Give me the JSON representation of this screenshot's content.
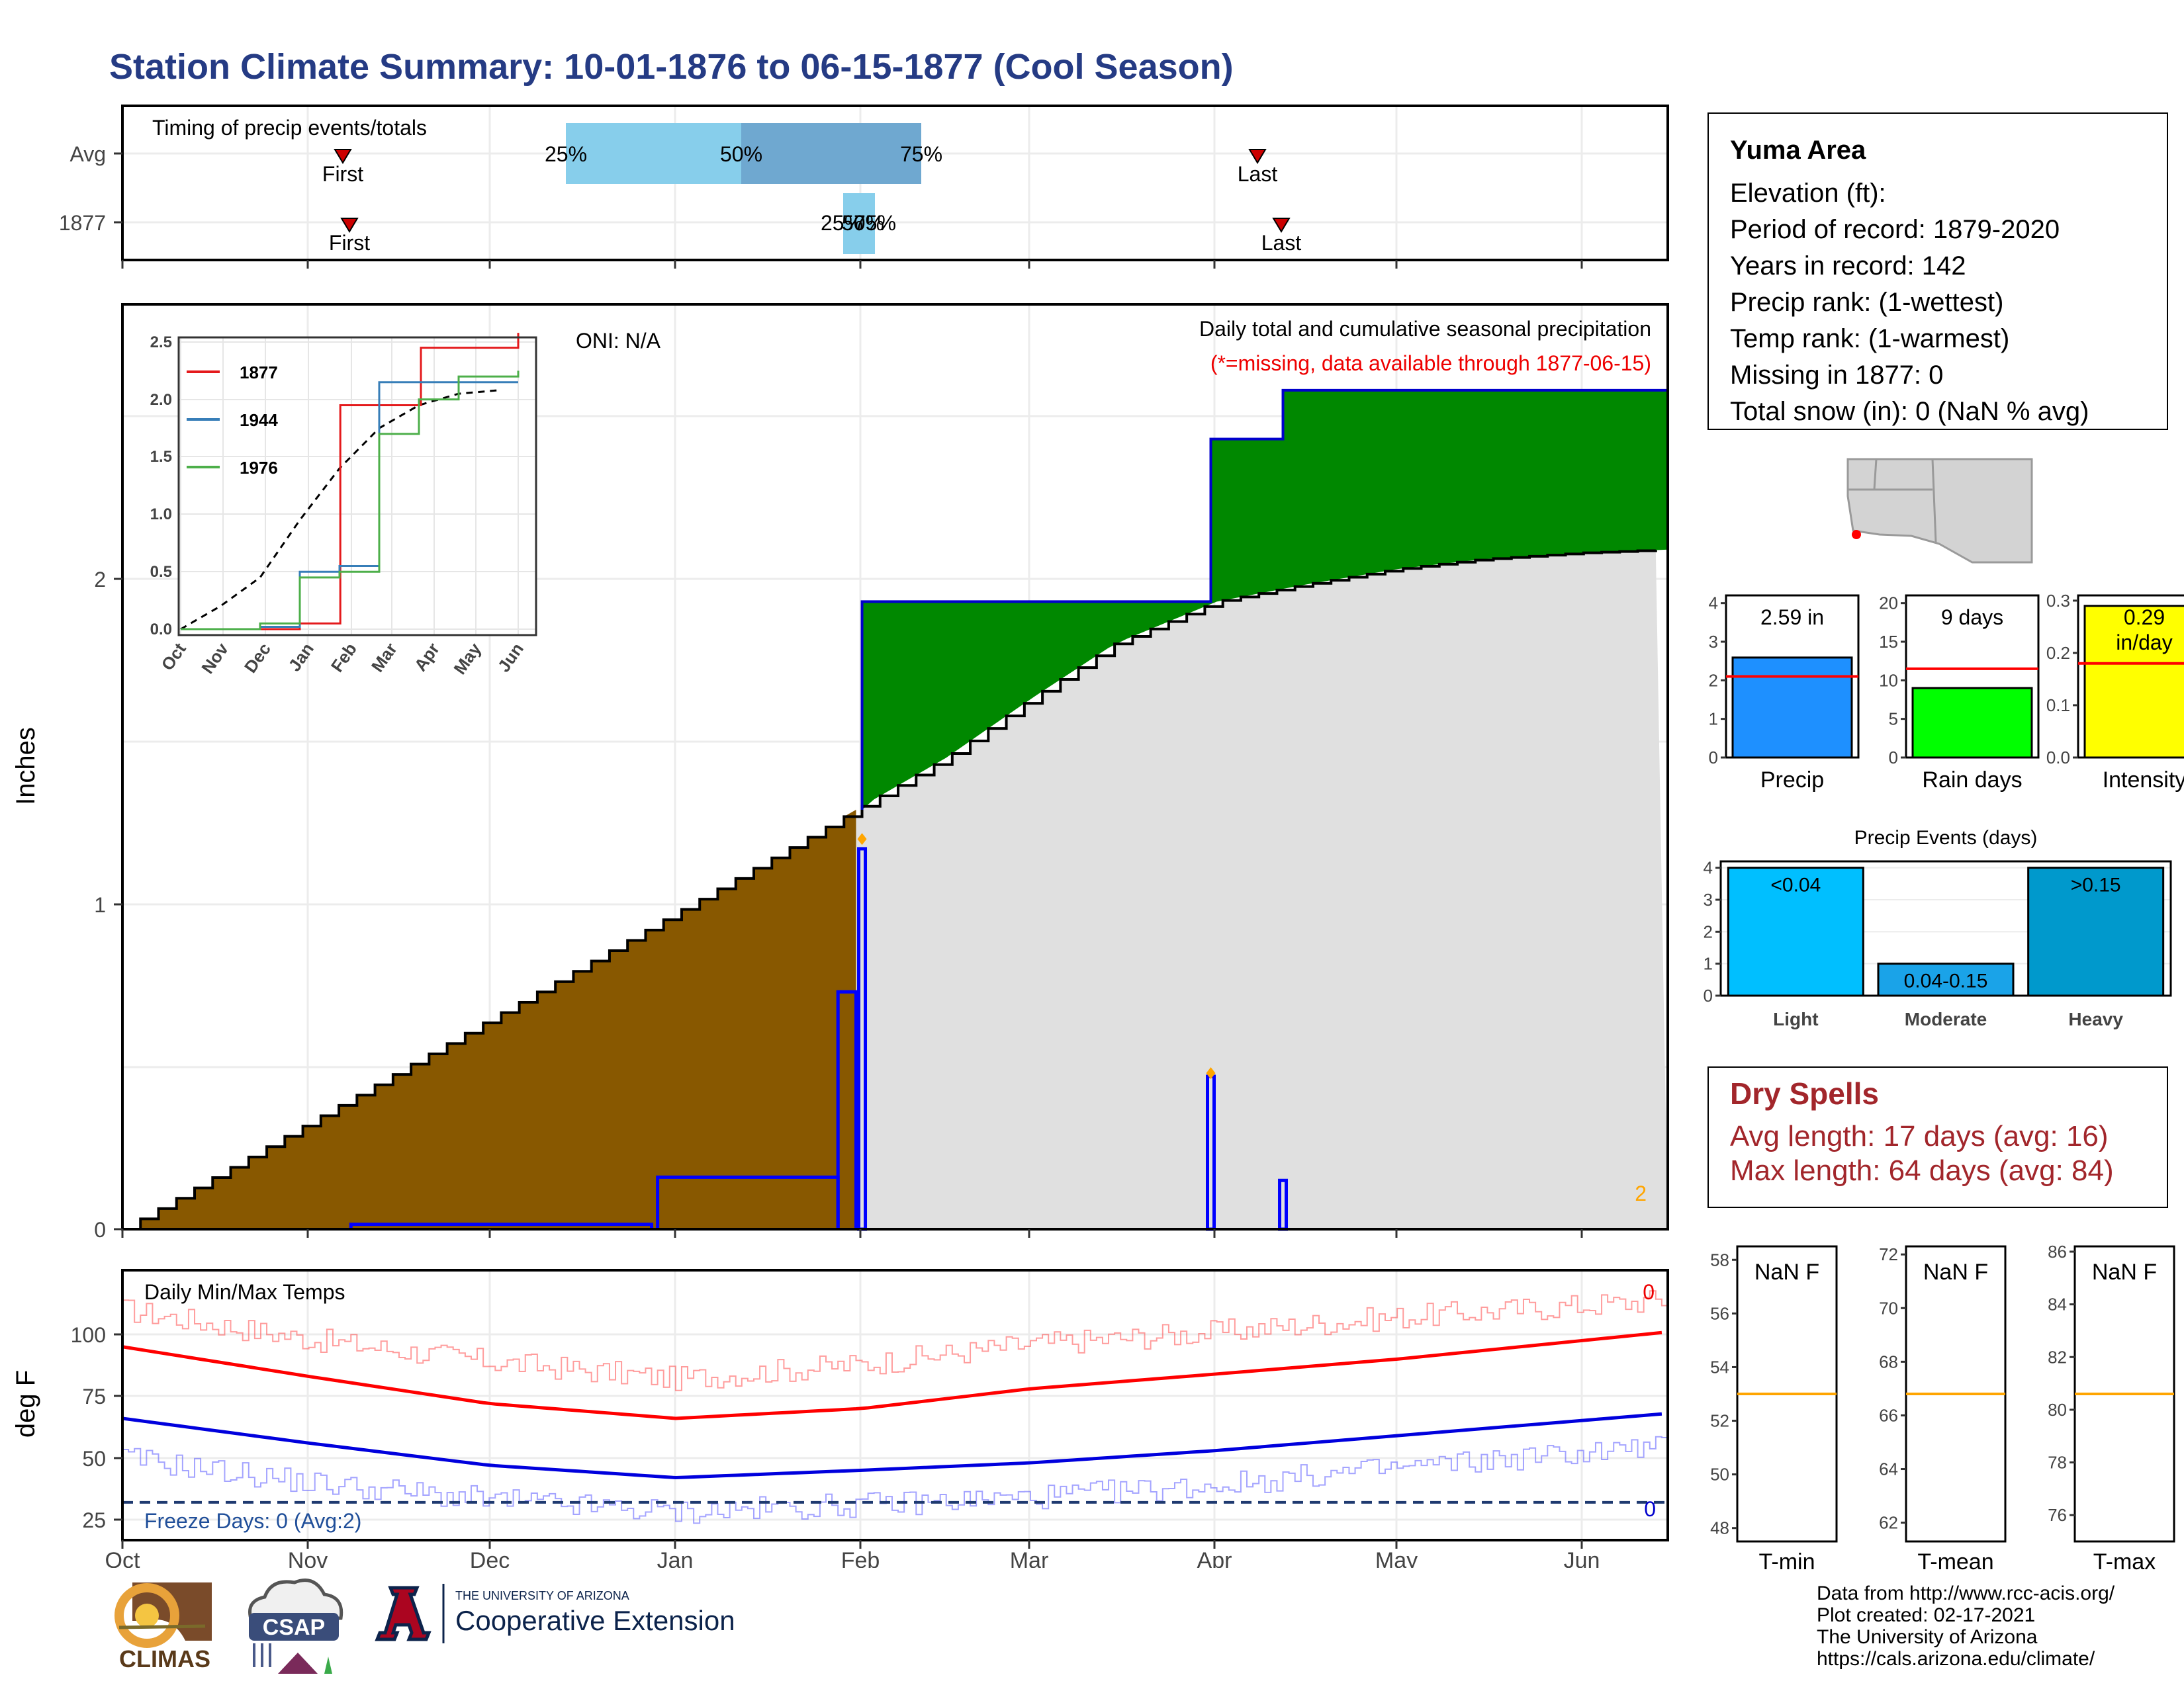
{
  "title": "Station Climate Summary: 10-01-1876 to 06-15-1877 (Cool Season)",
  "colors": {
    "title": "#253b84",
    "cumulative_current": "#885800",
    "cumulative_surplus": "#008800",
    "cumulative_avg_fill": "#e0e0e0",
    "daily_precip": "#0000ff",
    "quartile_light": "#87ceeb",
    "quartile_dark": "#6fa8d0",
    "tmax": "#ff0000",
    "tmin": "#0000dd",
    "dry_spells": "#a2262b",
    "mean_line": "#ffa500"
  },
  "timing": {
    "label": "Timing of precip events/totals",
    "rows": [
      {
        "name": "Avg",
        "first_label": "First",
        "last_label": "Last",
        "q25": "25%",
        "q50": "50%",
        "q75": "75%"
      },
      {
        "name": "1877",
        "first_label": "First",
        "last_label": "Last",
        "q25": "25%",
        "q50": "50%",
        "q75": "75%"
      }
    ]
  },
  "main": {
    "ylabel": "Inches",
    "oni": "ONI: N/A",
    "subtitle": "Daily total and cumulative seasonal precipitation",
    "missing_note": "(*=missing, data available through 1877-06-15)",
    "corner_count": "2",
    "y_ticks": [
      "0",
      "1",
      "2"
    ]
  },
  "inset": {
    "legend": [
      "1877",
      "1944",
      "1976"
    ],
    "legend_colors": [
      "#e41a1c",
      "#377eb8",
      "#4daf4a"
    ],
    "y_ticks": [
      "0.0",
      "0.5",
      "1.0",
      "1.5",
      "2.0",
      "2.5"
    ],
    "x_ticks": [
      "Oct",
      "Nov",
      "Dec",
      "Jan",
      "Feb",
      "Mar",
      "Apr",
      "May",
      "Jun"
    ]
  },
  "temps": {
    "label": "Daily Min/Max Temps",
    "ylabel": "deg F",
    "y_ticks": [
      "25",
      "50",
      "75",
      "100"
    ],
    "freeze_text": "Freeze Days: 0 (Avg:2)",
    "count_top": "0",
    "count_bottom": "0"
  },
  "x_ticks": [
    "Oct",
    "Nov",
    "Dec",
    "Jan",
    "Feb",
    "Mar",
    "Apr",
    "May",
    "Jun"
  ],
  "station": {
    "name": "Yuma Area",
    "lines": [
      "Elevation (ft):",
      "Period of record: 1879-2020",
      "Years in record: 142",
      "Precip rank:  (1-wettest)",
      "Temp rank:  (1-warmest)",
      "Missing in 1877: 0",
      "Total snow (in): 0 (NaN % avg)"
    ]
  },
  "summary_bars": [
    {
      "label": "Precip",
      "value_text": "2.59 in",
      "value": 2.59,
      "avg": 2.1,
      "ymax": 4.2,
      "ticks": [
        "0",
        "1",
        "2",
        "3",
        "4"
      ],
      "tick_values": [
        0,
        1,
        2,
        3,
        4
      ],
      "color": "#1e90ff"
    },
    {
      "label": "Rain days",
      "value_text": "9 days",
      "value": 9,
      "avg": 11.5,
      "ymax": 21,
      "ticks": [
        "0",
        "5",
        "10",
        "15",
        "20"
      ],
      "tick_values": [
        0,
        5,
        10,
        15,
        20
      ],
      "color": "#00ff00"
    },
    {
      "label": "Intensity",
      "value_text": "0.29",
      "value_unit": "in/day",
      "value": 0.29,
      "avg": 0.18,
      "ymax": 0.31,
      "ticks": [
        "0.0",
        "0.1",
        "0.2",
        "0.3"
      ],
      "tick_values": [
        0,
        0.1,
        0.2,
        0.3
      ],
      "color": "#ffff00"
    }
  ],
  "events": {
    "title": "Precip Events (days)",
    "categories": [
      "Light",
      "Moderate",
      "Heavy"
    ],
    "bar_labels": [
      "<0.04",
      "0.04-0.15",
      ">0.15"
    ],
    "values": [
      4,
      1,
      4
    ],
    "y_ticks": [
      "0",
      "1",
      "2",
      "3",
      "4"
    ],
    "colors": [
      "#00bfff",
      "#1aa3e8",
      "#0099cc"
    ]
  },
  "dry_spells": {
    "title": "Dry Spells",
    "avg": "Avg length: 17 days (avg: 16)",
    "max": "Max length: 64 days (avg: 84)"
  },
  "temp_panels": [
    {
      "label": "T-min",
      "text": "NaN F",
      "ticks": [
        "48",
        "50",
        "52",
        "54",
        "56",
        "58"
      ],
      "tick_values": [
        48,
        50,
        52,
        54,
        56,
        58
      ],
      "ymin": 47.5,
      "ymax": 58.5,
      "avg": 53
    },
    {
      "label": "T-mean",
      "text": "NaN F",
      "ticks": [
        "62",
        "64",
        "66",
        "68",
        "70",
        "72"
      ],
      "tick_values": [
        62,
        64,
        66,
        68,
        70,
        72
      ],
      "ymin": 61.3,
      "ymax": 72.3,
      "avg": 66.8
    },
    {
      "label": "T-max",
      "text": "NaN F",
      "ticks": [
        "76",
        "78",
        "80",
        "82",
        "84",
        "86"
      ],
      "tick_values": [
        76,
        78,
        80,
        82,
        84,
        86
      ],
      "ymin": 75,
      "ymax": 86.2,
      "avg": 80.6
    }
  ],
  "credits": [
    "Data from http://www.rcc-acis.org/",
    "Plot created: 02-17-2021",
    "The University of Arizona",
    "https://cals.arizona.edu/climate/"
  ],
  "logos": {
    "climas": "CLIMAS",
    "csap": "CSAP",
    "ua_small": "THE UNIVERSITY OF ARIZONA",
    "ua_big": "Cooperative Extension"
  },
  "chart_data": [
    {
      "type": "area",
      "title": "Daily total and cumulative seasonal precipitation",
      "ylabel": "Inches",
      "ylim": [
        0,
        2.85
      ],
      "xlim": [
        "1876-10-01",
        "1877-06-15"
      ],
      "cumulative_current": [
        [
          "1876-10-01",
          0
        ],
        [
          "1876-10-15",
          0.1
        ],
        [
          "1876-11-01",
          0.18
        ],
        [
          "1876-11-15",
          0.26
        ],
        [
          "1876-12-01",
          0.38
        ],
        [
          "1876-12-15",
          0.55
        ],
        [
          "1877-01-01",
          0.88
        ],
        [
          "1877-01-15",
          1.05
        ],
        [
          "1877-01-31",
          1.29
        ],
        [
          "1877-02-01",
          1.93
        ],
        [
          "1877-03-31",
          1.93
        ],
        [
          "1877-04-01",
          2.43
        ],
        [
          "1877-04-12",
          2.43
        ],
        [
          "1877-04-13",
          2.58
        ],
        [
          "1877-06-15",
          2.58
        ]
      ],
      "cumulative_avg": [
        [
          "1876-10-01",
          0
        ],
        [
          "1877-01-31",
          1.29
        ],
        [
          "1877-02-15",
          1.45
        ],
        [
          "1877-03-01",
          1.63
        ],
        [
          "1877-03-15",
          1.8
        ],
        [
          "1877-04-01",
          1.93
        ],
        [
          "1877-04-15",
          1.98
        ],
        [
          "1877-05-01",
          2.03
        ],
        [
          "1877-05-15",
          2.06
        ],
        [
          "1877-06-01",
          2.08
        ],
        [
          "1877-06-15",
          2.09
        ]
      ],
      "daily_precip": [
        [
          "1876-11-08",
          0.015
        ],
        [
          "1876-12-29",
          0.16
        ],
        [
          "1877-01-29",
          0.73
        ],
        [
          "1877-02-01",
          1.17
        ],
        [
          "1877-03-31",
          0.47
        ],
        [
          "1877-04-12",
          0.15
        ]
      ]
    },
    {
      "type": "line",
      "title": "Daily Min/Max Temps",
      "ylabel": "deg F",
      "ylim": [
        17,
        122
      ],
      "freeze_line": 32,
      "tmax_avg": [
        [
          "1876-10-01",
          95
        ],
        [
          "1876-11-01",
          83
        ],
        [
          "1876-12-01",
          72
        ],
        [
          "1877-01-01",
          66
        ],
        [
          "1877-02-01",
          70
        ],
        [
          "1877-03-01",
          78
        ],
        [
          "1877-04-01",
          84
        ],
        [
          "1877-05-01",
          90
        ],
        [
          "1877-06-15",
          101
        ]
      ],
      "tmin_avg": [
        [
          "1876-10-01",
          66
        ],
        [
          "1876-11-01",
          56
        ],
        [
          "1876-12-01",
          47
        ],
        [
          "1877-01-01",
          42
        ],
        [
          "1877-02-01",
          45
        ],
        [
          "1877-03-01",
          48
        ],
        [
          "1877-04-01",
          53
        ],
        [
          "1877-05-01",
          59
        ],
        [
          "1877-06-15",
          68
        ]
      ],
      "tmax_daily_trend": [
        [
          "1876-10-01",
          110
        ],
        [
          "1876-11-01",
          98
        ],
        [
          "1876-12-01",
          89
        ],
        [
          "1877-01-01",
          82
        ],
        [
          "1877-02-01",
          88
        ],
        [
          "1877-03-01",
          96
        ],
        [
          "1877-04-01",
          101
        ],
        [
          "1877-05-01",
          107
        ],
        [
          "1877-06-15",
          114
        ]
      ],
      "tmin_daily_trend": [
        [
          "1876-10-01",
          50
        ],
        [
          "1876-11-01",
          40
        ],
        [
          "1876-12-01",
          33
        ],
        [
          "1877-01-01",
          28
        ],
        [
          "1877-02-01",
          31
        ],
        [
          "1877-03-01",
          34
        ],
        [
          "1877-04-01",
          39
        ],
        [
          "1877-05-01",
          46
        ],
        [
          "1877-06-15",
          55
        ]
      ]
    },
    {
      "type": "line",
      "title": "",
      "ylim": [
        0,
        2.55
      ],
      "avg_cumulative": [
        [
          "Oct",
          0
        ],
        [
          "Nov",
          0.2
        ],
        [
          "Dec",
          0.45
        ],
        [
          "Jan",
          0.95
        ],
        [
          "Feb",
          1.4
        ],
        [
          "Mar",
          1.75
        ],
        [
          "Apr",
          1.95
        ],
        [
          "May",
          2.05
        ],
        [
          "Jun",
          2.08
        ]
      ],
      "series": [
        {
          "name": "1877",
          "points": [
            [
              "Oct",
              0
            ],
            [
              "Dec",
              0
            ],
            [
              "Jan",
              0.05
            ],
            [
              "Feb 1",
              1.95
            ],
            [
              "Apr",
              1.95
            ],
            [
              "Apr 2",
              2.45
            ],
            [
              "Jun 15",
              2.58
            ]
          ]
        },
        {
          "name": "1944",
          "points": [
            [
              "Oct",
              0
            ],
            [
              "Dec",
              0.02
            ],
            [
              "Jan",
              0.5
            ],
            [
              "Feb",
              0.55
            ],
            [
              "Mar",
              2.15
            ],
            [
              "Jun 15",
              2.15
            ]
          ]
        },
        {
          "name": "1976",
          "points": [
            [
              "Oct",
              0
            ],
            [
              "Dec",
              0.05
            ],
            [
              "Jan",
              0.45
            ],
            [
              "Feb",
              0.5
            ],
            [
              "Mar",
              1.7
            ],
            [
              "Apr",
              2.0
            ],
            [
              "May",
              2.2
            ],
            [
              "Jun 15",
              2.25
            ]
          ]
        }
      ]
    }
  ]
}
